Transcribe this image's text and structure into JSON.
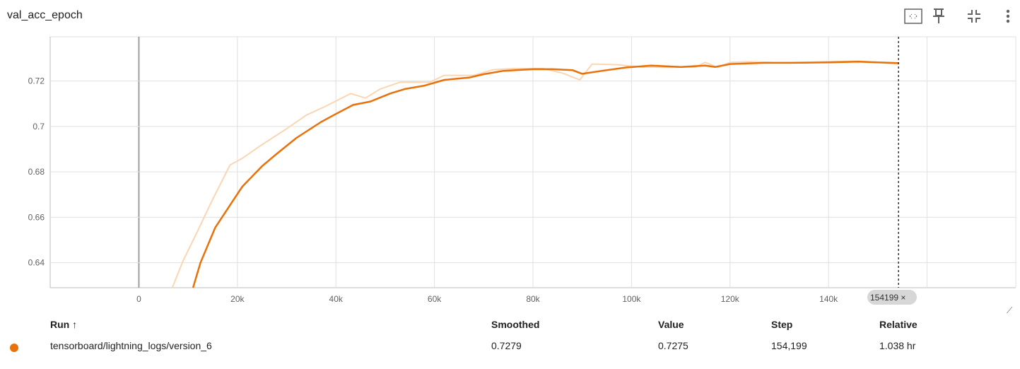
{
  "title": "val_acc_epoch",
  "toolbar": [
    {
      "name": "fit-domain-icon"
    },
    {
      "name": "pin-icon"
    },
    {
      "name": "collapse-icon"
    },
    {
      "name": "more-vert-icon"
    }
  ],
  "colors": {
    "line": "#e8710a",
    "line_raw": "#fbd6b3",
    "grid": "#e0e0e0",
    "zero_axis": "#9e9e9e"
  },
  "chart_data": {
    "type": "line",
    "title": "val_acc_epoch",
    "xlabel": "",
    "ylabel": "",
    "xlim": [
      -18000,
      178000
    ],
    "ylim": [
      0.629,
      0.7395
    ],
    "x_ticks": [
      0,
      20000,
      40000,
      60000,
      80000,
      100000,
      120000,
      140000
    ],
    "x_tick_labels": [
      "0",
      "20k",
      "40k",
      "60k",
      "80k",
      "100k",
      "120k",
      "140k"
    ],
    "y_ticks": [
      0.64,
      0.66,
      0.68,
      0.7,
      0.72
    ],
    "y_tick_labels": [
      "0.64",
      "0.66",
      "0.68",
      "0.7",
      "0.72"
    ],
    "grid": true,
    "series": [
      {
        "name": "tensorboard/lightning_logs/version_6",
        "role": "raw",
        "x": [
          6800,
          9000,
          11500,
          15000,
          18500,
          21000,
          25000,
          30000,
          34000,
          38000,
          43000,
          46000,
          49000,
          53000,
          59000,
          62000,
          68000,
          72000,
          76000,
          82000,
          86000,
          89500,
          92000,
          97000,
          102000,
          108000,
          113000,
          115000,
          117500,
          120000,
          124000,
          130000,
          140000,
          146000,
          154199
        ],
        "y": [
          0.629,
          0.641,
          0.652,
          0.668,
          0.683,
          0.686,
          0.692,
          0.699,
          0.705,
          0.709,
          0.7145,
          0.7125,
          0.7165,
          0.7195,
          0.7195,
          0.7225,
          0.7225,
          0.725,
          0.7255,
          0.7255,
          0.7235,
          0.7205,
          0.7275,
          0.7272,
          0.7262,
          0.726,
          0.7262,
          0.7282,
          0.726,
          0.7282,
          0.7285,
          0.728,
          0.7285,
          0.7288,
          0.7275
        ]
      },
      {
        "name": "tensorboard/lightning_logs/version_6",
        "role": "smoothed",
        "x": [
          11000,
          12500,
          15500,
          19000,
          21000,
          25000,
          28000,
          32000,
          37000,
          40000,
          43500,
          47000,
          51000,
          54000,
          58000,
          62000,
          67000,
          70000,
          74000,
          80000,
          84000,
          88000,
          90000,
          94000,
          99000,
          104000,
          110000,
          115000,
          117000,
          120000,
          127000,
          132000,
          140000,
          146000,
          154199
        ],
        "y": [
          0.629,
          0.64,
          0.6555,
          0.667,
          0.6735,
          0.6825,
          0.688,
          0.695,
          0.702,
          0.7055,
          0.7095,
          0.711,
          0.7145,
          0.7165,
          0.718,
          0.7205,
          0.7215,
          0.723,
          0.7245,
          0.7252,
          0.7252,
          0.7248,
          0.7232,
          0.7245,
          0.726,
          0.7268,
          0.7262,
          0.7268,
          0.7262,
          0.7275,
          0.728,
          0.728,
          0.7282,
          0.7285,
          0.7279
        ]
      }
    ],
    "cursor": {
      "step": 154199,
      "label": "154199 ×"
    }
  },
  "table": {
    "headers": {
      "run": "Run ↑",
      "smoothed": "Smoothed",
      "value": "Value",
      "step": "Step",
      "relative": "Relative"
    },
    "rows": [
      {
        "run": "tensorboard/lightning_logs/version_6",
        "smoothed": "0.7279",
        "value": "0.7275",
        "step": "154,199",
        "relative": "1.038 hr"
      }
    ]
  }
}
